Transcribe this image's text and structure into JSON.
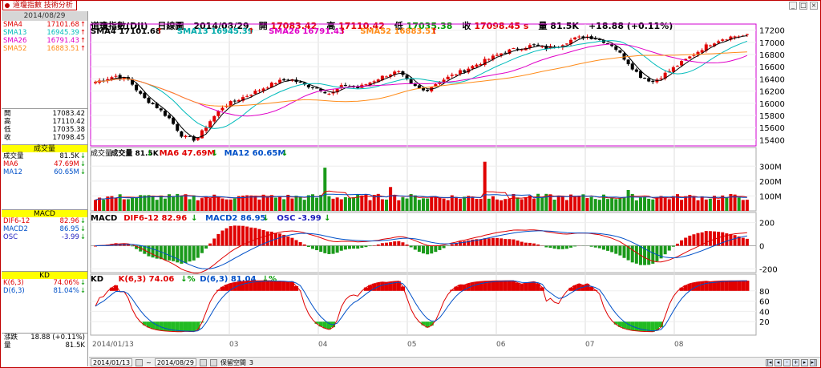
{
  "window": {
    "tab_title": "道瓊指數 技術分析"
  },
  "left_panel": {
    "date": "2014/08/29",
    "sma": [
      {
        "name": "SMA4",
        "value": "17101.68",
        "dir": "up",
        "color": "#e00000"
      },
      {
        "name": "SMA13",
        "value": "16945.39",
        "dir": "up",
        "color": "#00bbbb"
      },
      {
        "name": "SMA26",
        "value": "16791.43",
        "dir": "up",
        "color": "#e000c8"
      },
      {
        "name": "SMA52",
        "value": "16883.51",
        "dir": "up",
        "color": "#ff8c1a"
      }
    ],
    "ohlc": [
      {
        "label": "開",
        "value": "17083.42"
      },
      {
        "label": "高",
        "value": "17110.42"
      },
      {
        "label": "低",
        "value": "17035.38"
      },
      {
        "label": "收",
        "value": "17098.45"
      }
    ],
    "volume": {
      "header": "成交量",
      "rows": [
        {
          "label": "成交量",
          "value": "81.5K",
          "dir": "dn",
          "color": "#000000"
        },
        {
          "label": "MA6",
          "value": "47.69M",
          "dir": "dn",
          "color": "#e00000"
        },
        {
          "label": "MA12",
          "value": "60.65M",
          "dir": "dn",
          "color": "#0050c8"
        }
      ]
    },
    "macd": {
      "header": "MACD",
      "rows": [
        {
          "label": "DIF6-12",
          "value": "82.96",
          "dir": "dn",
          "color": "#e00000"
        },
        {
          "label": "MACD2",
          "value": "86.95",
          "dir": "dn",
          "color": "#0050c8"
        },
        {
          "label": "OSC",
          "value": "-3.99",
          "dir": "dn",
          "color": "#2020c0"
        }
      ]
    },
    "kd": {
      "header": "KD",
      "rows": [
        {
          "label": "K(6,3)",
          "value": "74.06%",
          "dir": "dn",
          "color": "#e00000"
        },
        {
          "label": "D(6,3)",
          "value": "81.04%",
          "dir": "dn",
          "color": "#0050c8"
        }
      ]
    },
    "bottom": [
      {
        "label": "漲跌",
        "value": "18.88 (+0.11%)"
      },
      {
        "label": "量",
        "value": "81.5K"
      }
    ]
  },
  "toolbar": {
    "name": "道瓊指數(DJI)",
    "period": "日線圖",
    "date": "2014/08/29",
    "open_label": "開",
    "open": "17083.42",
    "high_label": "高",
    "high": "17110.42",
    "low_label": "低",
    "low": "17035.38",
    "close_label": "收",
    "close": "17098.45 s",
    "vol_label": "量",
    "vol": "81.5K",
    "change": "+18.88 (+0.11%)"
  },
  "price_panel": {
    "legend": [
      {
        "text": "SMA4 17101.68",
        "color": "#000000"
      },
      {
        "text": "SMA13 16945.39",
        "color": "#00aaaa"
      },
      {
        "text": "SMA26 16791.43",
        "color": "#e000c8"
      },
      {
        "text": "SMA52 16883.51",
        "color": "#ff8c1a"
      }
    ],
    "y_ticks": [
      "17200",
      "17000",
      "16800",
      "16600",
      "16400",
      "16200",
      "16000",
      "15800",
      "15600",
      "15400"
    ]
  },
  "volume_panel": {
    "legend": [
      {
        "text": "成交量",
        "color": "#000000"
      },
      {
        "text": "成交量 81.5K",
        "color": "#000000"
      },
      {
        "text": "MA6 47.69M",
        "color": "#e00000"
      },
      {
        "text": "MA12 60.65M",
        "color": "#0050c8"
      }
    ],
    "y_ticks": [
      "300M",
      "200M",
      "100M"
    ]
  },
  "macd_panel": {
    "legend": [
      {
        "text": "MACD",
        "color": "#000000"
      },
      {
        "text": "DIF6-12 82.96",
        "color": "#e00000"
      },
      {
        "text": "MACD2 86.95",
        "color": "#0050c8"
      },
      {
        "text": "OSC -3.99",
        "color": "#2020c0"
      }
    ],
    "y_ticks": [
      "200",
      "0",
      "-200"
    ]
  },
  "kd_panel": {
    "legend": [
      {
        "text": "KD",
        "color": "#000000"
      },
      {
        "text": "K(6,3) 74.06",
        "color": "#e00000"
      },
      {
        "text": "D(6,3) 81.04",
        "color": "#0050c8"
      }
    ],
    "y_ticks": [
      "80",
      "60",
      "40",
      "20"
    ]
  },
  "x_axis": {
    "labels": [
      "2014/01/13",
      "03",
      "04",
      "05",
      "06",
      "07",
      "08"
    ]
  },
  "time_bar": {
    "from": "2014/01/13",
    "to": "2014/08/29",
    "preserve": "保留空間",
    "count": "3"
  },
  "colors": {
    "up": "#e00000",
    "down": "#000000",
    "vol_up": "#e00000",
    "vol_down": "#1a9a1a"
  }
}
